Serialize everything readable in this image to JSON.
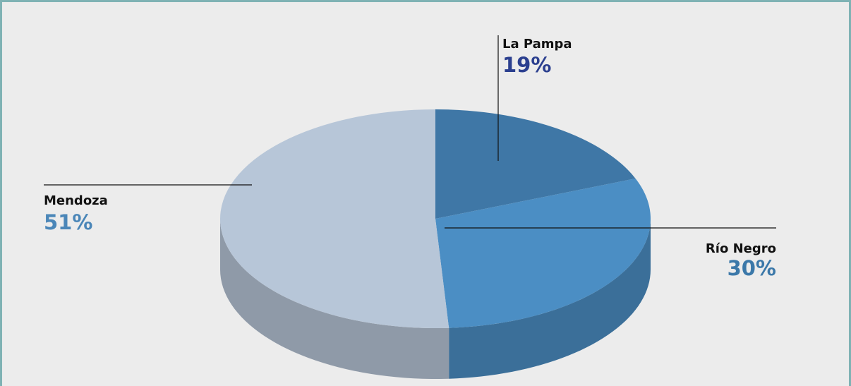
{
  "chart_data": {
    "type": "pie",
    "categories": [
      "La Pampa",
      "Río Negro",
      "Mendoza"
    ],
    "values": [
      19,
      30,
      51
    ],
    "value_labels": [
      "19%",
      "30%",
      "51%"
    ],
    "colors": [
      "#3f77a6",
      "#4b8ec4",
      "#b7c6d8"
    ],
    "label_colors": [
      "#2b3f8f",
      "#3b78a9",
      "#4a86b8"
    ]
  }
}
